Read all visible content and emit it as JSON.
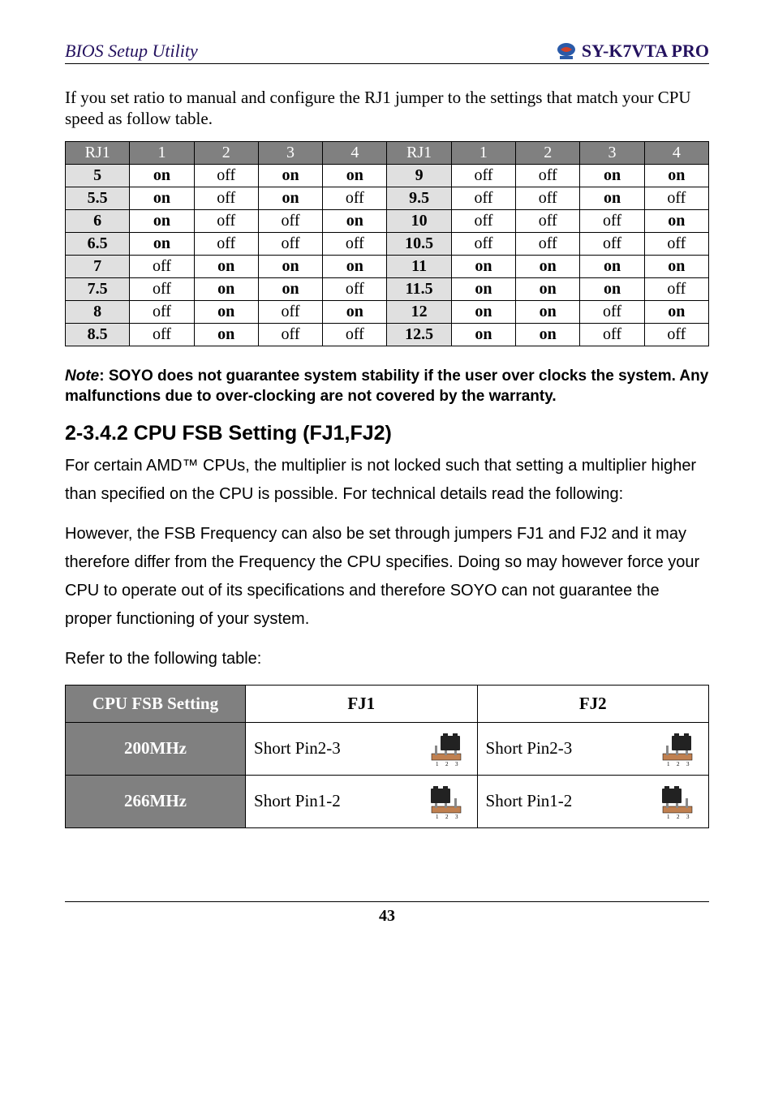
{
  "header": {
    "left": "BIOS Setup Utility",
    "right": "SY-K7VTA PRO"
  },
  "intro": "If you set ratio to manual and configure the RJ1 jumper to the settings that match your CPU speed as follow table.",
  "rj1_headers": [
    "RJ1",
    "1",
    "2",
    "3",
    "4",
    "RJ1",
    "1",
    "2",
    "3",
    "4"
  ],
  "rj1_rows": [
    [
      "5",
      "on",
      "off",
      "on",
      "on",
      "9",
      "off",
      "off",
      "on",
      "on"
    ],
    [
      "5.5",
      "on",
      "off",
      "on",
      "off",
      "9.5",
      "off",
      "off",
      "on",
      "off"
    ],
    [
      "6",
      "on",
      "off",
      "off",
      "on",
      "10",
      "off",
      "off",
      "off",
      "on"
    ],
    [
      "6.5",
      "on",
      "off",
      "off",
      "off",
      "10.5",
      "off",
      "off",
      "off",
      "off"
    ],
    [
      "7",
      "off",
      "on",
      "on",
      "on",
      "11",
      "on",
      "on",
      "on",
      "on"
    ],
    [
      "7.5",
      "off",
      "on",
      "on",
      "off",
      "11.5",
      "on",
      "on",
      "on",
      "off"
    ],
    [
      "8",
      "off",
      "on",
      "off",
      "on",
      "12",
      "on",
      "on",
      "off",
      "on"
    ],
    [
      "8.5",
      "off",
      "on",
      "off",
      "off",
      "12.5",
      "on",
      "on",
      "off",
      "off"
    ]
  ],
  "note_label": "Note",
  "note_body": ": SOYO does not guarantee system stability if the user over clocks the system. Any malfunctions due to over-clocking are not covered by the warranty.",
  "section_title": "2-3.4.2 CPU FSB Setting (FJ1,FJ2)",
  "para1": "For certain AMD™ CPUs, the multiplier is not locked such that setting a multiplier higher than specified on the CPU is possible. For technical details read the following:",
  "para2": "However, the FSB Frequency can also be set through jumpers FJ1 and FJ2 and it may therefore differ from the Frequency the CPU specifies. Doing so may however force your CPU to operate out of its specifications and therefore SOYO can not guarantee the proper functioning of your system.",
  "para3": "Refer to the following table:",
  "fsb": {
    "headers": [
      "CPU FSB Setting",
      "FJ1",
      "FJ2"
    ],
    "rows": [
      {
        "label": "200MHz",
        "fj1": "Short Pin2-3",
        "fj2": "Short Pin2-3",
        "pos": "23"
      },
      {
        "label": "266MHz",
        "fj1": "Short Pin1-2",
        "fj2": "Short Pin1-2",
        "pos": "12"
      }
    ]
  },
  "page_number": "43",
  "colors": {
    "header_text": "#24125f",
    "table_header_bg": "#808080",
    "table_label_bg": "#e0e0e0"
  }
}
